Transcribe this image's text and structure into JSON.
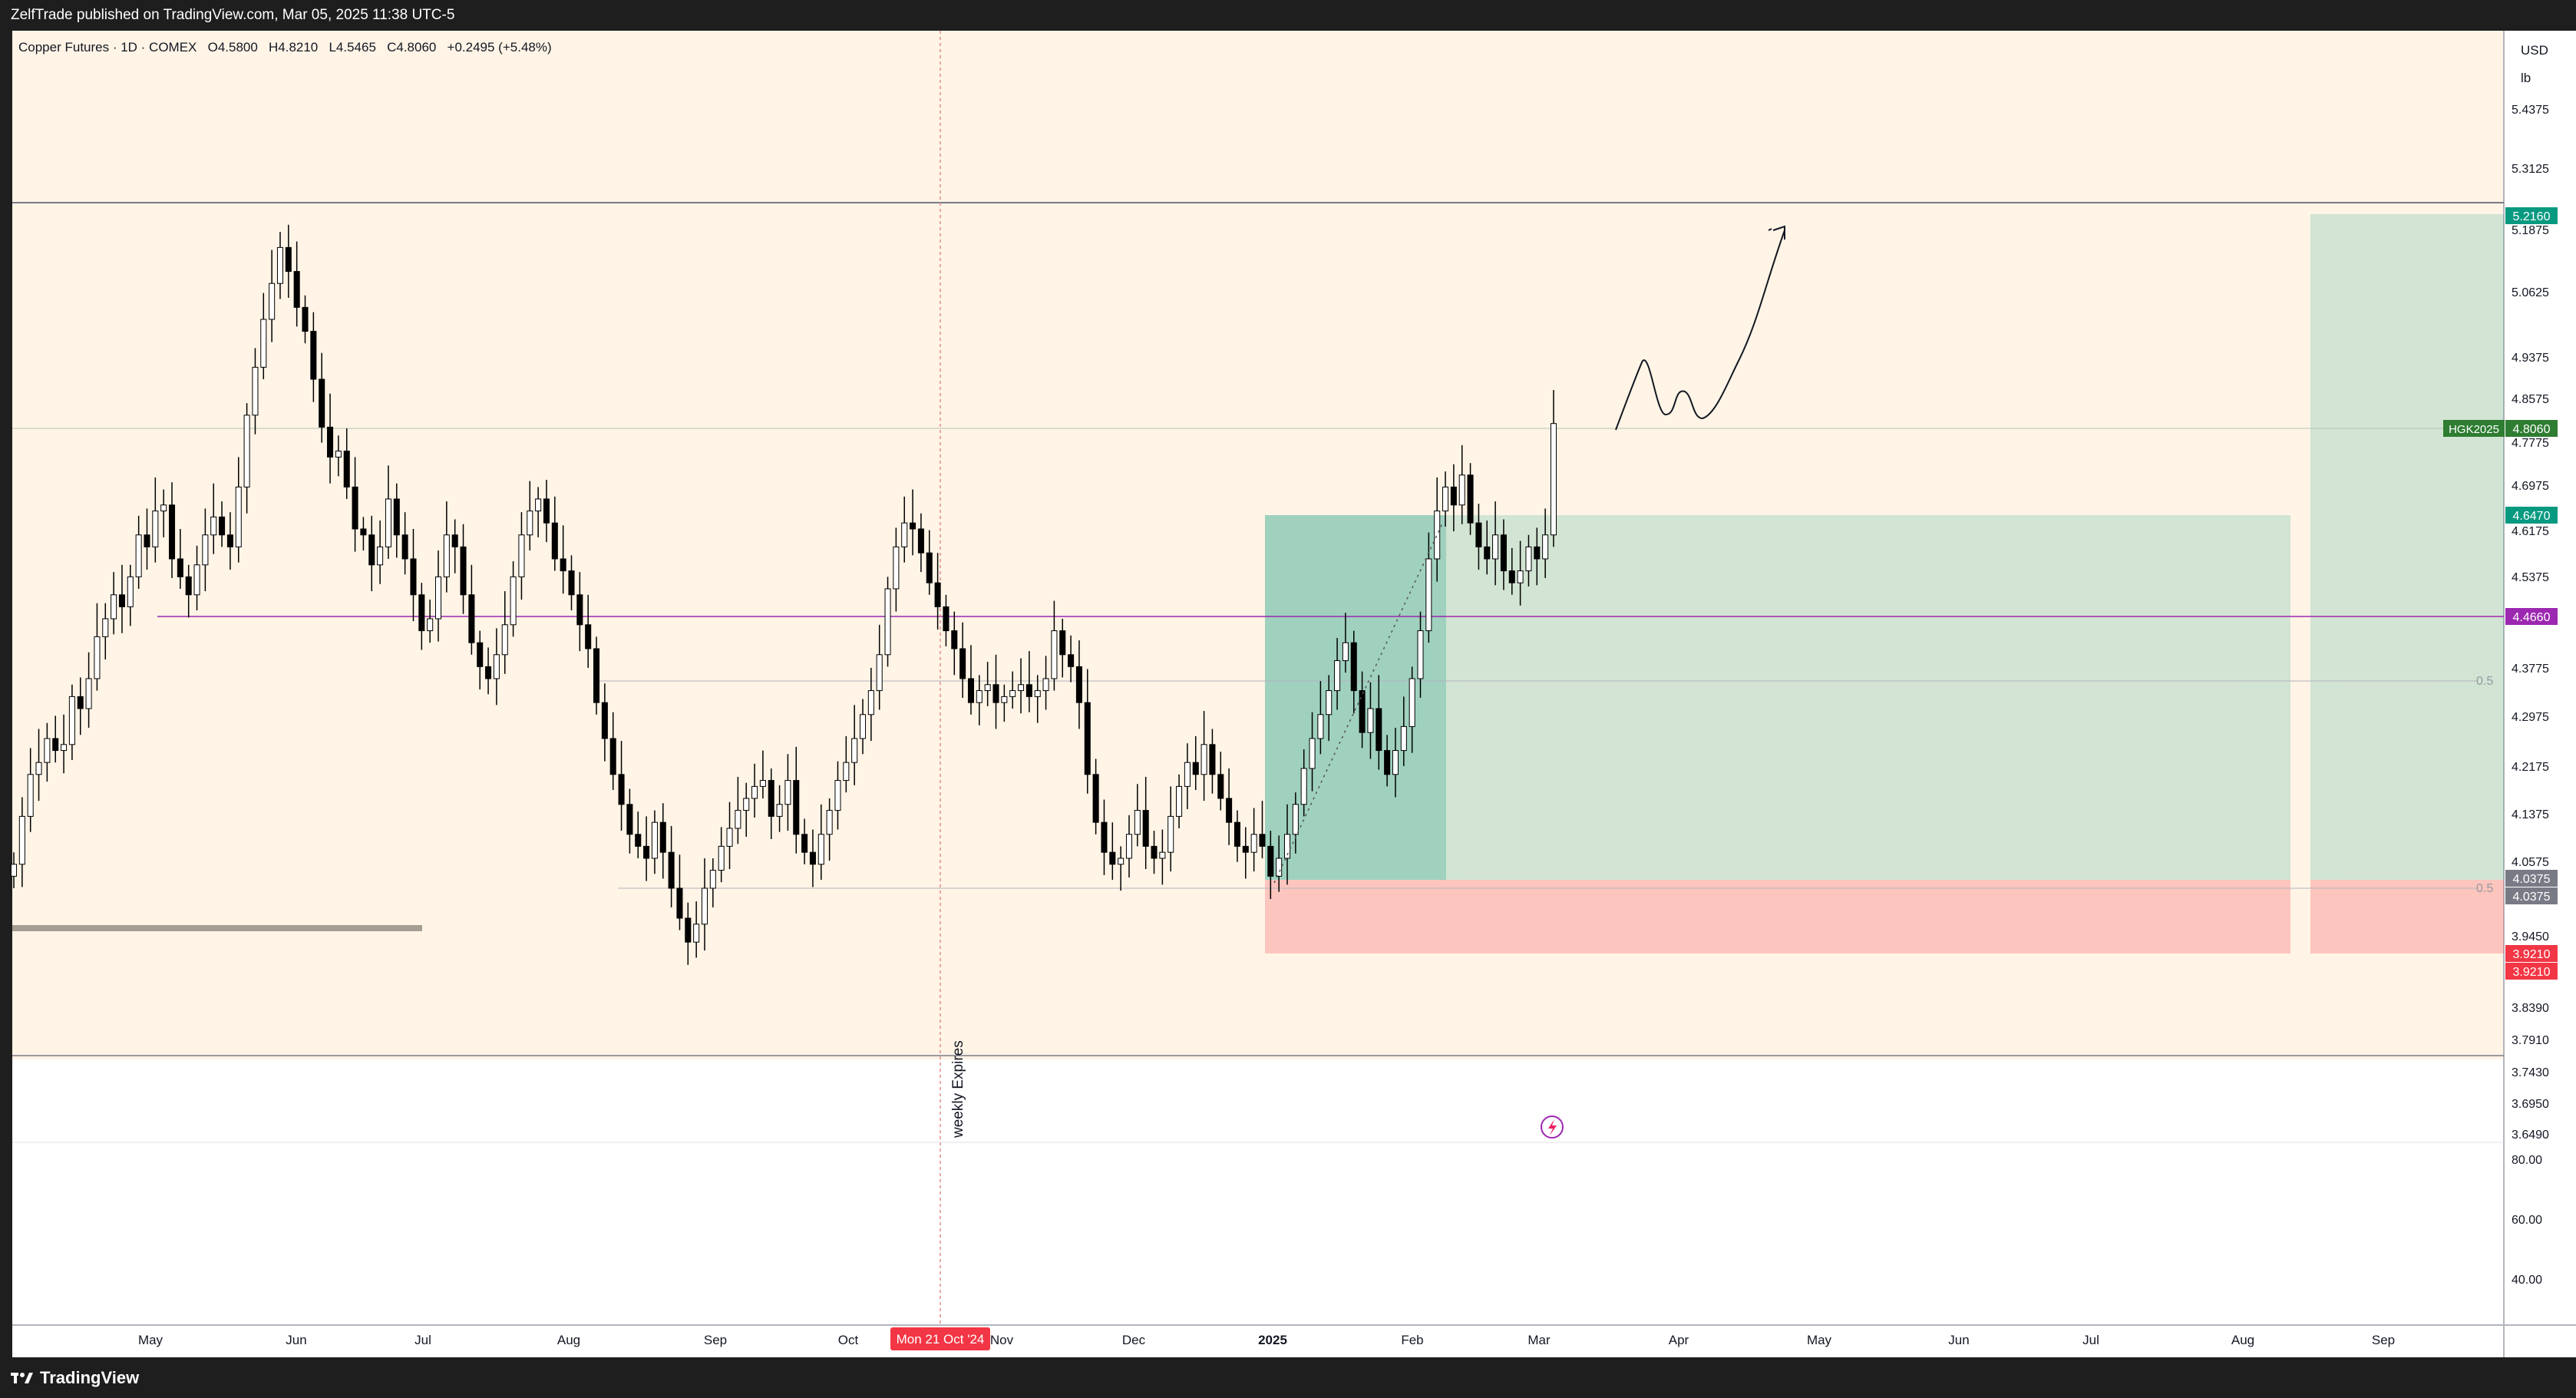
{
  "header": {
    "published_text": "ZelfTrade published on TradingView.com, Mar 05, 2025 11:38 UTC-5"
  },
  "legend": {
    "symbol": "Copper Futures · 1D · COMEX",
    "open_label": "O",
    "open": "4.5800",
    "high_label": "H",
    "high": "4.8210",
    "low_label": "L",
    "low": "4.5465",
    "close_label": "C",
    "close": "4.8060",
    "change": "+0.2495 (+5.48%)"
  },
  "price_scale": {
    "currency": "USD",
    "unit": "lb",
    "ticks": [
      "5.4375",
      "5.3125",
      "5.1875",
      "5.0625",
      "4.9375",
      "4.8575",
      "4.7775",
      "4.6975",
      "4.6175",
      "4.5375",
      "4.3775",
      "4.2975",
      "4.2175",
      "4.1375",
      "4.0575",
      "3.9450",
      "3.8390",
      "3.7910",
      "3.7430",
      "3.6950",
      "3.6490"
    ],
    "labels": [
      {
        "text": "5.2160",
        "color": "#089981"
      },
      {
        "text": "4.8060",
        "color": "#2e7d32",
        "symbol": "HGK2025"
      },
      {
        "text": "4.6470",
        "color": "#089981"
      },
      {
        "text": "4.4660",
        "color": "#9c27b0"
      },
      {
        "text": "4.0375",
        "color": "#787b86"
      },
      {
        "text": "4.0375",
        "color": "#787b86"
      },
      {
        "text": "3.9210",
        "color": "#f23645"
      },
      {
        "text": "3.9210",
        "color": "#f23645"
      }
    ]
  },
  "indicator_scale": {
    "ticks": [
      "80.00",
      "60.00",
      "40.00"
    ]
  },
  "time_axis": {
    "labels": [
      "May",
      "Jun",
      "Jul",
      "Aug",
      "Sep",
      "Oct",
      "Nov",
      "Dec",
      "2025",
      "Feb",
      "Mar",
      "Apr",
      "May",
      "Jun",
      "Jul",
      "Aug",
      "Sep"
    ],
    "cursor_label": "Mon 21 Oct '24"
  },
  "annotations": {
    "vertical_text": "weekly Expires",
    "fib_label": "0.5",
    "fib_label_2": "0.5"
  },
  "footer": {
    "brand": "TradingView"
  },
  "colors": {
    "bg_zone": "#fff4e6",
    "up_candle": "#ffffff",
    "down_candle": "#000000",
    "profit_zone": "#089981",
    "loss_zone": "#f23645",
    "purple_line": "#9c27b0"
  },
  "chart_data": {
    "type": "candlestick",
    "ohlc": {
      "open": 4.58,
      "high": 4.821,
      "low": 4.5465,
      "close": 4.806
    },
    "long_position_1": {
      "entry": 4.0375,
      "target": 4.647,
      "stop": 3.921
    },
    "long_position_2": {
      "entry": 4.0375,
      "target": 5.216,
      "stop": 3.921
    },
    "horizontal_levels": [
      5.26,
      4.806,
      4.466,
      4.0375
    ],
    "close_series": [
      4.07,
      4.15,
      4.22,
      4.24,
      4.28,
      4.26,
      4.27,
      4.35,
      4.33,
      4.38,
      4.45,
      4.48,
      4.52,
      4.5,
      4.55,
      4.62,
      4.6,
      4.66,
      4.67,
      4.58,
      4.55,
      4.52,
      4.57,
      4.62,
      4.65,
      4.62,
      4.6,
      4.7,
      4.82,
      4.9,
      4.98,
      5.04,
      5.1,
      5.06,
      5.0,
      4.96,
      4.88,
      4.8,
      4.75,
      4.76,
      4.7,
      4.63,
      4.62,
      4.57,
      4.6,
      4.68,
      4.62,
      4.58,
      4.52,
      4.46,
      4.48,
      4.55,
      4.62,
      4.6,
      4.52,
      4.44,
      4.4,
      4.38,
      4.42,
      4.47,
      4.55,
      4.62,
      4.66,
      4.68,
      4.64,
      4.58,
      4.56,
      4.52,
      4.47,
      4.43,
      4.34,
      4.28,
      4.22,
      4.17,
      4.12,
      4.1,
      4.08,
      4.14,
      4.09,
      4.03,
      3.98,
      3.94,
      3.97,
      4.03,
      4.06,
      4.1,
      4.13,
      4.16,
      4.18,
      4.2,
      4.21,
      4.15,
      4.17,
      4.21,
      4.12,
      4.09,
      4.07,
      4.12,
      4.16,
      4.21,
      4.24,
      4.28,
      4.32,
      4.36,
      4.42,
      4.53,
      4.6,
      4.64,
      4.63,
      4.59,
      4.54,
      4.5,
      4.46,
      4.43,
      4.38,
      4.34,
      4.36,
      4.37,
      4.34,
      4.35,
      4.36,
      4.37,
      4.35,
      4.36,
      4.38,
      4.46,
      4.42,
      4.4,
      4.34,
      4.22,
      4.14,
      4.09,
      4.07,
      4.08,
      4.12,
      4.16,
      4.1,
      4.08,
      4.09,
      4.15,
      4.2,
      4.24,
      4.22,
      4.27,
      4.22,
      4.18,
      4.14,
      4.1,
      4.09,
      4.12,
      4.1,
      4.05,
      4.08,
      4.12,
      4.17,
      4.23,
      4.28,
      4.32,
      4.36,
      4.41,
      4.44,
      4.36,
      4.29,
      4.33,
      4.26,
      4.22,
      4.26,
      4.3,
      4.38,
      4.46,
      4.58,
      4.66,
      4.7,
      4.67,
      4.72,
      4.64,
      4.6,
      4.58,
      4.62,
      4.56,
      4.54,
      4.56,
      4.6,
      4.58,
      4.62,
      4.806
    ]
  }
}
